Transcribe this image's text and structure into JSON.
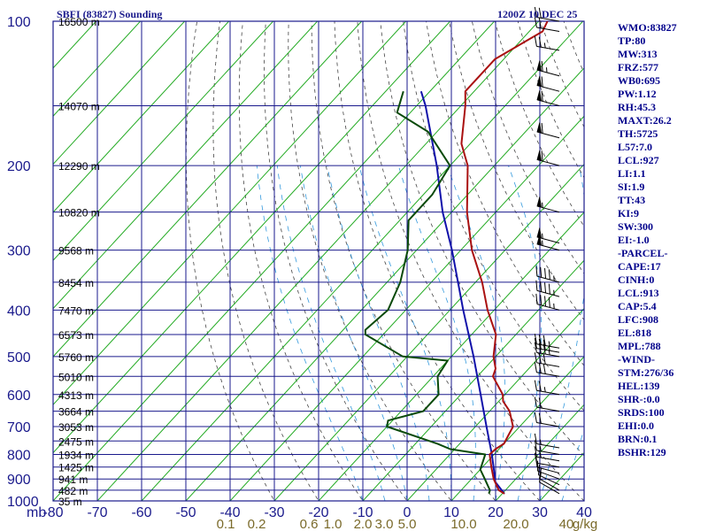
{
  "header": {
    "title_left": "SBFI (83827) Sounding",
    "title_right": "1200Z 10 DEC 25"
  },
  "indices": [
    "WMO:83827",
    "TP:80",
    "MW:313",
    "FRZ:577",
    "WB0:695",
    "PW:1.12",
    "RH:45.3",
    "MAXT:26.2",
    "TH:5725",
    "L57:7.0",
    "LCL:927",
    "LI:1.1",
    "SI:1.9",
    "TT:43",
    "KI:9",
    "SW:300",
    "EI:-1.0",
    "-PARCEL-",
    "CAPE:17",
    "CINH:0",
    "LCL:913",
    "CAP:5.4",
    "LFC:908",
    "EL:818",
    "MPL:788",
    "-WIND-",
    "STM:276/36",
    "HEL:139",
    "SHR-:0.0",
    "SRDS:100",
    "EHI:0.0",
    "BRN:0.1",
    "BSHR:129"
  ],
  "colors": {
    "grid": "#1a1a8c",
    "isotherm": "#22aa22",
    "dry_adiabat": "#444444",
    "mixing_ratio": "#3399dd",
    "temperature": "#aa1111",
    "dewpoint": "#0a4a0a",
    "parcel": "#1111aa",
    "mixing_label": "#7a6a2a"
  },
  "chart_data": {
    "type": "line",
    "chart_kind": "skew-T log-P sounding",
    "x_axis": {
      "unit_label": "mb",
      "ticks": [
        "-80",
        "-70",
        "-60",
        "-50",
        "-40",
        "-30",
        "-20",
        "-10",
        "0",
        "10",
        "20",
        "30",
        "40"
      ],
      "range": [
        -80,
        40
      ]
    },
    "y_axis": {
      "scale": "log",
      "ticks": [
        "100",
        "200",
        "300",
        "400",
        "500",
        "600",
        "700",
        "800",
        "900",
        "1000"
      ],
      "range": [
        1000,
        100
      ]
    },
    "height_labels": [
      {
        "p": 100,
        "label": "16500 m"
      },
      {
        "p": 150,
        "label": "14070 m"
      },
      {
        "p": 200,
        "label": "12290 m"
      },
      {
        "p": 250,
        "label": "10820 m"
      },
      {
        "p": 300,
        "label": "9568 m"
      },
      {
        "p": 350,
        "label": "8454 m"
      },
      {
        "p": 400,
        "label": "7470 m"
      },
      {
        "p": 450,
        "label": "6573 m"
      },
      {
        "p": 500,
        "label": "5760 m"
      },
      {
        "p": 550,
        "label": "5010 m"
      },
      {
        "p": 600,
        "label": "4313 m"
      },
      {
        "p": 650,
        "label": "3664 m"
      },
      {
        "p": 700,
        "label": "3053 m"
      },
      {
        "p": 750,
        "label": "2475 m"
      },
      {
        "p": 800,
        "label": "1934 m"
      },
      {
        "p": 850,
        "label": "1425 m"
      },
      {
        "p": 900,
        "label": "941 m"
      },
      {
        "p": 950,
        "label": "482 m"
      },
      {
        "p": 1000,
        "label": "35 m"
      }
    ],
    "mixing_ratio_labels": [
      "0.1",
      "0.2",
      "0.6",
      "1.0",
      "2.0",
      "3.0",
      "5.0",
      "10.0",
      "20.0",
      "40",
      "g/kg"
    ],
    "series": [
      {
        "name": "temperature",
        "points": [
          {
            "p": 966,
            "t": 20.5
          },
          {
            "p": 950,
            "t": 18.5
          },
          {
            "p": 900,
            "t": 15.0
          },
          {
            "p": 850,
            "t": 12.0
          },
          {
            "p": 800,
            "t": 9.0
          },
          {
            "p": 780,
            "t": 9.2
          },
          {
            "p": 760,
            "t": 10.0
          },
          {
            "p": 700,
            "t": 8.5
          },
          {
            "p": 650,
            "t": 4.5
          },
          {
            "p": 620,
            "t": 1.0
          },
          {
            "p": 600,
            "t": -0.5
          },
          {
            "p": 550,
            "t": -6.5
          },
          {
            "p": 530,
            "t": -7.5
          },
          {
            "p": 500,
            "t": -10.5
          },
          {
            "p": 450,
            "t": -14.5
          },
          {
            "p": 400,
            "t": -21.5
          },
          {
            "p": 350,
            "t": -28.5
          },
          {
            "p": 300,
            "t": -37.5
          },
          {
            "p": 250,
            "t": -46.5
          },
          {
            "p": 200,
            "t": -56.0
          },
          {
            "p": 180,
            "t": -62.0
          },
          {
            "p": 150,
            "t": -69.0
          },
          {
            "p": 140,
            "t": -72.0
          },
          {
            "p": 120,
            "t": -72.0
          },
          {
            "p": 105,
            "t": -67.0
          },
          {
            "p": 100,
            "t": -68.0
          }
        ]
      },
      {
        "name": "dewpoint",
        "points": [
          {
            "p": 966,
            "t": 17.0
          },
          {
            "p": 950,
            "t": 16.5
          },
          {
            "p": 900,
            "t": 13.0
          },
          {
            "p": 860,
            "t": 10.0
          },
          {
            "p": 800,
            "t": 8.0
          },
          {
            "p": 780,
            "t": -1.0
          },
          {
            "p": 760,
            "t": -5.0
          },
          {
            "p": 700,
            "t": -20.0
          },
          {
            "p": 680,
            "t": -21.0
          },
          {
            "p": 650,
            "t": -15.0
          },
          {
            "p": 600,
            "t": -15.0
          },
          {
            "p": 550,
            "t": -19.0
          },
          {
            "p": 510,
            "t": -20.0
          },
          {
            "p": 500,
            "t": -31.0
          },
          {
            "p": 450,
            "t": -44.0
          },
          {
            "p": 440,
            "t": -45.0
          },
          {
            "p": 400,
            "t": -44.0
          },
          {
            "p": 350,
            "t": -47.0
          },
          {
            "p": 300,
            "t": -52.0
          },
          {
            "p": 260,
            "t": -58.0
          },
          {
            "p": 230,
            "t": -58.0
          },
          {
            "p": 200,
            "t": -60.0
          },
          {
            "p": 170,
            "t": -72.0
          },
          {
            "p": 155,
            "t": -83.0
          },
          {
            "p": 140,
            "t": -86.0
          }
        ]
      },
      {
        "name": "parcel",
        "points": [
          {
            "p": 966,
            "t": 20.5
          },
          {
            "p": 913,
            "t": 16.0
          },
          {
            "p": 850,
            "t": 12.5
          },
          {
            "p": 800,
            "t": 9.5
          },
          {
            "p": 700,
            "t": 2.5
          },
          {
            "p": 600,
            "t": -5.5
          },
          {
            "p": 500,
            "t": -15.0
          },
          {
            "p": 400,
            "t": -27.0
          },
          {
            "p": 300,
            "t": -42.0
          },
          {
            "p": 250,
            "t": -52.0
          },
          {
            "p": 200,
            "t": -63.0
          },
          {
            "p": 150,
            "t": -78.0
          },
          {
            "p": 140,
            "t": -82.0
          }
        ]
      }
    ],
    "wind_barbs": [
      {
        "p": 966,
        "dir": 300,
        "spd": 10
      },
      {
        "p": 950,
        "dir": 300,
        "spd": 10
      },
      {
        "p": 925,
        "dir": 295,
        "spd": 10
      },
      {
        "p": 900,
        "dir": 290,
        "spd": 10
      },
      {
        "p": 875,
        "dir": 285,
        "spd": 10
      },
      {
        "p": 850,
        "dir": 280,
        "spd": 10
      },
      {
        "p": 825,
        "dir": 280,
        "spd": 15
      },
      {
        "p": 800,
        "dir": 280,
        "spd": 15
      },
      {
        "p": 775,
        "dir": 280,
        "spd": 15
      },
      {
        "p": 700,
        "dir": 280,
        "spd": 20
      },
      {
        "p": 650,
        "dir": 280,
        "spd": 20
      },
      {
        "p": 600,
        "dir": 280,
        "spd": 25
      },
      {
        "p": 550,
        "dir": 280,
        "spd": 30
      },
      {
        "p": 525,
        "dir": 280,
        "spd": 30
      },
      {
        "p": 500,
        "dir": 280,
        "spd": 35
      },
      {
        "p": 490,
        "dir": 280,
        "spd": 35
      },
      {
        "p": 480,
        "dir": 280,
        "spd": 35
      },
      {
        "p": 400,
        "dir": 285,
        "spd": 45
      },
      {
        "p": 375,
        "dir": 285,
        "spd": 45
      },
      {
        "p": 350,
        "dir": 285,
        "spd": 45
      },
      {
        "p": 300,
        "dir": 285,
        "spd": 55
      },
      {
        "p": 290,
        "dir": 285,
        "spd": 55
      },
      {
        "p": 250,
        "dir": 285,
        "spd": 55
      },
      {
        "p": 200,
        "dir": 285,
        "spd": 60
      },
      {
        "p": 175,
        "dir": 285,
        "spd": 60
      },
      {
        "p": 150,
        "dir": 285,
        "spd": 60
      },
      {
        "p": 140,
        "dir": 285,
        "spd": 60
      },
      {
        "p": 130,
        "dir": 285,
        "spd": 65
      },
      {
        "p": 115,
        "dir": 280,
        "spd": 25
      },
      {
        "p": 105,
        "dir": 280,
        "spd": 20
      },
      {
        "p": 100,
        "dir": 280,
        "spd": 20
      }
    ]
  }
}
